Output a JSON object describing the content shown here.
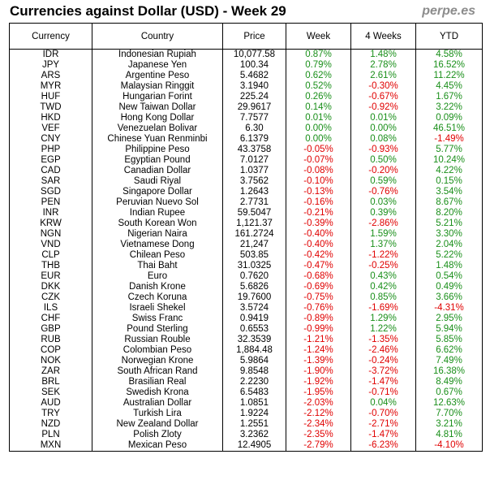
{
  "header": {
    "title": "Currencies against Dollar (USD) - Week 29",
    "brand": "perpe.es"
  },
  "colors": {
    "positive": "#1a8f1a",
    "negative": "#e00000"
  },
  "chart_data": {
    "type": "table",
    "title": "Currencies against Dollar (USD) - Week 29",
    "columns": [
      "Currency",
      "Country",
      "Price",
      "Week",
      "4 Weeks",
      "YTD"
    ],
    "rows": [
      [
        "IDR",
        "Indonesian Rupiah",
        "10,077.58",
        "0.87%",
        "1.48%",
        "4.58%"
      ],
      [
        "JPY",
        "Japanese Yen",
        "100.34",
        "0.79%",
        "2.78%",
        "16.52%"
      ],
      [
        "ARS",
        "Argentine Peso",
        "5.4682",
        "0.62%",
        "2.61%",
        "11.22%"
      ],
      [
        "MYR",
        "Malaysian Ringgit",
        "3.1940",
        "0.52%",
        "-0.30%",
        "4.45%"
      ],
      [
        "HUF",
        "Hungarian Forint",
        "225.24",
        "0.26%",
        "-0.67%",
        "1.67%"
      ],
      [
        "TWD",
        "New Taiwan Dollar",
        "29.9617",
        "0.14%",
        "-0.92%",
        "3.22%"
      ],
      [
        "HKD",
        "Hong Kong Dollar",
        "7.7577",
        "0.01%",
        "0.01%",
        "0.09%"
      ],
      [
        "VEF",
        "Venezuelan Bolivar",
        "6.30",
        "0.00%",
        "0.00%",
        "46.51%"
      ],
      [
        "CNY",
        "Chinese Yuan Renminbi",
        "6.1379",
        "0.00%",
        "0.08%",
        "-1.49%"
      ],
      [
        "PHP",
        "Philippine Peso",
        "43.3758",
        "-0.05%",
        "-0.93%",
        "5.77%"
      ],
      [
        "EGP",
        "Egyptian Pound",
        "7.0127",
        "-0.07%",
        "0.50%",
        "10.24%"
      ],
      [
        "CAD",
        "Canadian Dollar",
        "1.0377",
        "-0.08%",
        "-0.20%",
        "4.22%"
      ],
      [
        "SAR",
        "Saudi Riyal",
        "3.7562",
        "-0.10%",
        "0.59%",
        "0.15%"
      ],
      [
        "SGD",
        "Singapore Dollar",
        "1.2643",
        "-0.13%",
        "-0.76%",
        "3.54%"
      ],
      [
        "PEN",
        "Peruvian Nuevo Sol",
        "2.7731",
        "-0.16%",
        "0.03%",
        "8.67%"
      ],
      [
        "INR",
        "Indian Rupee",
        "59.5047",
        "-0.21%",
        "0.39%",
        "8.20%"
      ],
      [
        "KRW",
        "South Korean Won",
        "1,121.37",
        "-0.39%",
        "-2.86%",
        "5.21%"
      ],
      [
        "NGN",
        "Nigerian Naira",
        "161.2724",
        "-0.40%",
        "1.59%",
        "3.30%"
      ],
      [
        "VND",
        "Vietnamese Dong",
        "21,247",
        "-0.40%",
        "1.37%",
        "2.04%"
      ],
      [
        "CLP",
        "Chilean Peso",
        "503.85",
        "-0.42%",
        "-1.22%",
        "5.22%"
      ],
      [
        "THB",
        "Thai Baht",
        "31.0325",
        "-0.47%",
        "-0.25%",
        "1.48%"
      ],
      [
        "EUR",
        "Euro",
        "0.7620",
        "-0.68%",
        "0.43%",
        "0.54%"
      ],
      [
        "DKK",
        "Danish Krone",
        "5.6826",
        "-0.69%",
        "0.42%",
        "0.49%"
      ],
      [
        "CZK",
        "Czech Koruna",
        "19.7600",
        "-0.75%",
        "0.85%",
        "3.66%"
      ],
      [
        "ILS",
        "Israeli Shekel",
        "3.5724",
        "-0.76%",
        "-1.69%",
        "-4.31%"
      ],
      [
        "CHF",
        "Swiss Franc",
        "0.9419",
        "-0.89%",
        "1.29%",
        "2.95%"
      ],
      [
        "GBP",
        "Pound Sterling",
        "0.6553",
        "-0.99%",
        "1.22%",
        "5.94%"
      ],
      [
        "RUB",
        "Russian Rouble",
        "32.3539",
        "-1.21%",
        "-1.35%",
        "5.85%"
      ],
      [
        "COP",
        "Colombian Peso",
        "1,884.48",
        "-1.24%",
        "-2.46%",
        "6.62%"
      ],
      [
        "NOK",
        "Norwegian Krone",
        "5.9864",
        "-1.39%",
        "-0.24%",
        "7.49%"
      ],
      [
        "ZAR",
        "South African Rand",
        "9.8548",
        "-1.90%",
        "-3.72%",
        "16.38%"
      ],
      [
        "BRL",
        "Brasilian Real",
        "2.2230",
        "-1.92%",
        "-1.47%",
        "8.49%"
      ],
      [
        "SEK",
        "Swedish Krona",
        "6.5483",
        "-1.95%",
        "-0.71%",
        "0.67%"
      ],
      [
        "AUD",
        "Australian Dollar",
        "1.0851",
        "-2.03%",
        "0.04%",
        "12.63%"
      ],
      [
        "TRY",
        "Turkish Lira",
        "1.9224",
        "-2.12%",
        "-0.70%",
        "7.70%"
      ],
      [
        "NZD",
        "New Zealand Dollar",
        "1.2551",
        "-2.34%",
        "-2.71%",
        "3.21%"
      ],
      [
        "PLN",
        "Polish Zloty",
        "3.2362",
        "-2.35%",
        "-1.47%",
        "4.81%"
      ],
      [
        "MXN",
        "Mexican Peso",
        "12.4905",
        "-2.79%",
        "-6.23%",
        "-4.10%"
      ]
    ]
  }
}
